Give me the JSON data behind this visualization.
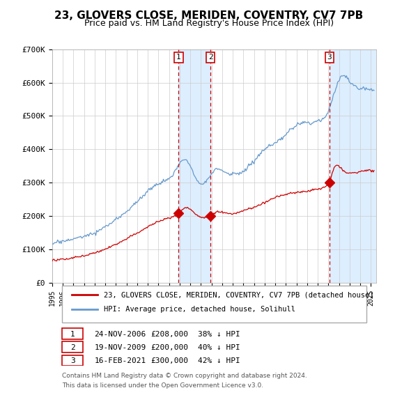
{
  "title": "23, GLOVERS CLOSE, MERIDEN, COVENTRY, CV7 7PB",
  "subtitle": "Price paid vs. HM Land Registry's House Price Index (HPI)",
  "legend_red": "23, GLOVERS CLOSE, MERIDEN, COVENTRY, CV7 7PB (detached house)",
  "legend_blue": "HPI: Average price, detached house, Solihull",
  "footer1": "Contains HM Land Registry data © Crown copyright and database right 2024.",
  "footer2": "This data is licensed under the Open Government Licence v3.0.",
  "transactions": [
    {
      "label": "1",
      "date": "24-NOV-2006",
      "price": 208000,
      "pct": "38% ↓ HPI",
      "x_year": 2006.9
    },
    {
      "label": "2",
      "date": "19-NOV-2009",
      "price": 200000,
      "pct": "40% ↓ HPI",
      "x_year": 2009.9
    },
    {
      "label": "3",
      "date": "16-FEB-2021",
      "price": 300000,
      "pct": "42% ↓ HPI",
      "x_year": 2021.1
    }
  ],
  "red_color": "#cc0000",
  "blue_color": "#6699cc",
  "shade_color": "#ddeeff",
  "vline_color": "#cc0000",
  "grid_color": "#cccccc",
  "bg_color": "#ffffff",
  "ylim": [
    0,
    700000
  ],
  "xlim_start": 1995,
  "xlim_end": 2025.5
}
